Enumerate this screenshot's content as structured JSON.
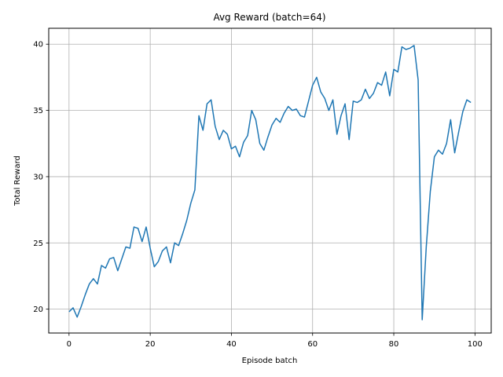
{
  "chart_data": {
    "type": "line",
    "title": "Avg Reward (batch=64)",
    "xlabel": "Episode batch",
    "ylabel": "Total Reward",
    "xlim": [
      -5,
      104
    ],
    "ylim": [
      18.2,
      41.2
    ],
    "xticks": [
      0,
      20,
      40,
      60,
      80,
      100
    ],
    "yticks": [
      20,
      25,
      30,
      35,
      40
    ],
    "grid": true,
    "line_color": "#1f77b4",
    "series": [
      {
        "x": [
          0,
          1,
          2,
          3,
          4,
          5,
          6,
          7,
          8,
          9,
          10,
          11,
          12,
          13,
          14,
          15,
          16,
          17,
          18,
          19,
          20,
          21,
          22,
          23,
          24,
          25,
          26,
          27,
          28,
          29,
          30,
          31,
          32,
          33,
          34,
          35,
          36,
          37,
          38,
          39,
          40,
          41,
          42,
          43,
          44,
          45,
          46,
          47,
          48,
          49,
          50,
          51,
          52,
          53,
          54,
          55,
          56,
          57,
          58,
          59,
          60,
          61,
          62,
          63,
          64,
          65,
          66,
          67,
          68,
          69,
          70,
          71,
          72,
          73,
          74,
          75,
          76,
          77,
          78,
          79,
          80,
          81,
          82,
          83,
          84,
          85,
          86,
          87,
          88,
          89,
          90,
          91,
          92,
          93,
          94,
          95,
          96,
          97,
          98,
          99
        ],
        "y": [
          19.8,
          20.1,
          19.4,
          20.2,
          21.1,
          21.9,
          22.3,
          21.9,
          23.3,
          23.1,
          23.8,
          23.9,
          22.9,
          23.8,
          24.7,
          24.6,
          26.2,
          26.1,
          25.1,
          26.2,
          24.6,
          23.2,
          23.6,
          24.4,
          24.7,
          23.5,
          25.0,
          24.8,
          25.7,
          26.7,
          28.0,
          29.0,
          34.6,
          33.5,
          35.5,
          35.8,
          33.8,
          32.8,
          33.5,
          33.2,
          32.1,
          32.3,
          31.5,
          32.6,
          33.1,
          35.0,
          34.3,
          32.5,
          32.0,
          33.0,
          33.9,
          34.4,
          34.1,
          34.8,
          35.3,
          35.0,
          35.1,
          34.6,
          34.5,
          35.7,
          36.9,
          37.5,
          36.4,
          35.9,
          35.0,
          35.8,
          33.2,
          34.6,
          35.5,
          32.8,
          35.7,
          35.6,
          35.8,
          36.6,
          35.9,
          36.3,
          37.1,
          36.9,
          37.9,
          36.1,
          38.1,
          37.9,
          39.8,
          39.6,
          39.7,
          39.9,
          37.3,
          19.2,
          24.7,
          28.9,
          31.5,
          32.0,
          31.7,
          32.5,
          34.3,
          31.8,
          33.4,
          34.9,
          35.8,
          35.6
        ]
      }
    ]
  }
}
